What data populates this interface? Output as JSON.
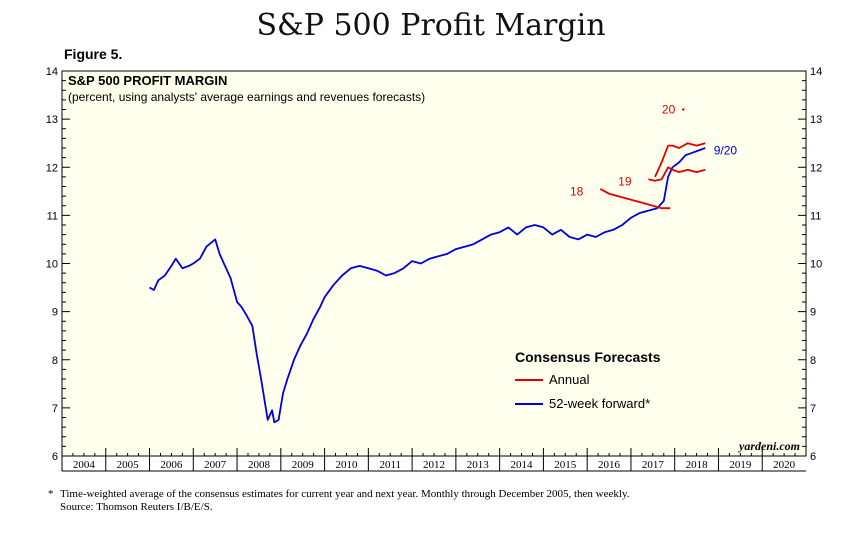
{
  "page": {
    "title": "S&P 500 Profit Margin",
    "figure_label": "Figure 5.",
    "footnote": "Time-weighted average of the consensus estimates for current year and next year. Monthly through December 2005, then weekly.",
    "footnote_marker": "*",
    "source": "Source: Thomson Reuters I/B/E/S."
  },
  "chart_data": {
    "type": "line",
    "title": "S&P 500 PROFIT MARGIN",
    "subtitle": "(percent, using analysts' average earnings and revenues forecasts)",
    "watermark": "yardeni.com",
    "xlim": [
      2004,
      2021
    ],
    "ylim": [
      6,
      14
    ],
    "yticks": [
      6,
      7,
      8,
      9,
      10,
      11,
      12,
      13,
      14
    ],
    "xticks": [
      "2004",
      "2005",
      "2006",
      "2007",
      "2008",
      "2009",
      "2010",
      "2011",
      "2012",
      "2013",
      "2014",
      "2015",
      "2016",
      "2017",
      "2018",
      "2019",
      "2020"
    ],
    "grid": false,
    "background": "#ffffee",
    "legend": {
      "title": "Consensus Forecasts",
      "placement": "lower-right",
      "entries": [
        {
          "label": "Annual",
          "color": "#e00000"
        },
        {
          "label": "52-week forward*",
          "color": "#0000dd"
        }
      ]
    },
    "series": [
      {
        "name": "52-week forward*",
        "color": "#0000dd",
        "x": [
          2006.0,
          2006.1,
          2006.2,
          2006.35,
          2006.5,
          2006.6,
          2006.75,
          2006.9,
          2007.0,
          2007.15,
          2007.3,
          2007.5,
          2007.6,
          2007.7,
          2007.85,
          2008.0,
          2008.1,
          2008.2,
          2008.35,
          2008.45,
          2008.55,
          2008.7,
          2008.8,
          2008.85,
          2008.95,
          2009.05,
          2009.15,
          2009.3,
          2009.45,
          2009.6,
          2009.75,
          2009.9,
          2010.0,
          2010.2,
          2010.4,
          2010.6,
          2010.8,
          2011.0,
          2011.2,
          2011.4,
          2011.6,
          2011.8,
          2012.0,
          2012.2,
          2012.4,
          2012.6,
          2012.8,
          2013.0,
          2013.2,
          2013.4,
          2013.6,
          2013.8,
          2014.0,
          2014.2,
          2014.4,
          2014.6,
          2014.8,
          2015.0,
          2015.2,
          2015.4,
          2015.6,
          2015.8,
          2016.0,
          2016.2,
          2016.4,
          2016.6,
          2016.8,
          2017.0,
          2017.2,
          2017.4,
          2017.6,
          2017.75,
          2017.85,
          2017.95,
          2018.1,
          2018.25,
          2018.4,
          2018.55,
          2018.7
        ],
        "values": [
          9.5,
          9.45,
          9.65,
          9.75,
          9.95,
          10.1,
          9.9,
          9.95,
          10.0,
          10.1,
          10.35,
          10.5,
          10.2,
          10.0,
          9.7,
          9.2,
          9.1,
          8.95,
          8.7,
          8.1,
          7.6,
          6.75,
          6.95,
          6.7,
          6.75,
          7.3,
          7.6,
          8.0,
          8.3,
          8.55,
          8.85,
          9.1,
          9.3,
          9.55,
          9.75,
          9.9,
          9.95,
          9.9,
          9.85,
          9.75,
          9.8,
          9.9,
          10.05,
          10.0,
          10.1,
          10.15,
          10.2,
          10.3,
          10.35,
          10.4,
          10.5,
          10.6,
          10.65,
          10.75,
          10.6,
          10.75,
          10.8,
          10.75,
          10.6,
          10.7,
          10.55,
          10.5,
          10.6,
          10.55,
          10.65,
          10.7,
          10.8,
          10.95,
          11.05,
          11.1,
          11.15,
          11.3,
          11.8,
          12.0,
          12.1,
          12.25,
          12.3,
          12.35,
          12.4
        ]
      },
      {
        "name": "Annual (2018)",
        "color": "#e00000",
        "x": [
          2016.3,
          2016.5,
          2016.7,
          2016.9,
          2017.1,
          2017.3,
          2017.5,
          2017.7,
          2017.9
        ],
        "values": [
          11.55,
          11.45,
          11.4,
          11.35,
          11.3,
          11.25,
          11.2,
          11.15,
          11.15
        ]
      },
      {
        "name": "Annual (2019)",
        "color": "#e00000",
        "x": [
          2017.4,
          2017.55,
          2017.7,
          2017.85,
          2017.95,
          2018.1,
          2018.3,
          2018.5,
          2018.7
        ],
        "values": [
          11.75,
          11.72,
          11.75,
          12.0,
          11.95,
          11.9,
          11.95,
          11.9,
          11.95
        ]
      },
      {
        "name": "Annual (2020)",
        "color": "#e00000",
        "x": [
          2017.55,
          2017.7,
          2017.85,
          2017.95,
          2018.1,
          2018.3,
          2018.5,
          2018.7
        ],
        "values": [
          11.8,
          12.1,
          12.45,
          12.45,
          12.4,
          12.5,
          12.45,
          12.5
        ]
      }
    ],
    "annotations": [
      {
        "text": "18",
        "x": 2016.05,
        "y": 11.5,
        "color": "#e00000"
      },
      {
        "text": "19",
        "x": 2017.15,
        "y": 11.7,
        "color": "#e00000"
      },
      {
        "text": "20",
        "x": 2018.15,
        "y": 13.2,
        "color": "#e00000",
        "marker": "."
      },
      {
        "text": "9/20",
        "x": 2018.8,
        "y": 12.35,
        "color": "#0000dd"
      }
    ]
  }
}
